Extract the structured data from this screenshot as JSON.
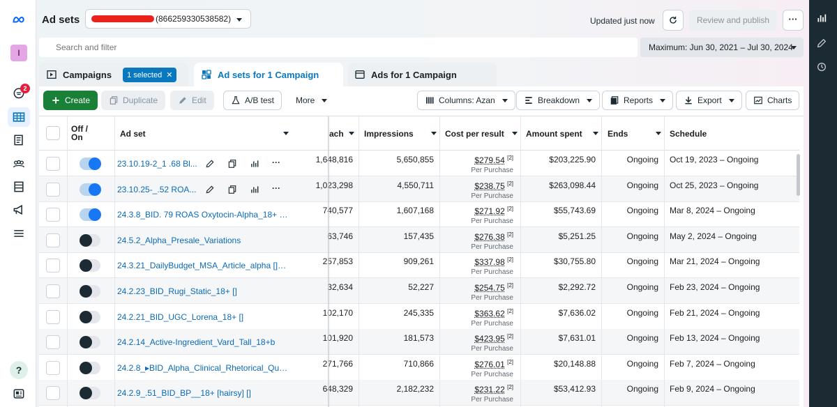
{
  "leftnav": {
    "logo": "meta-logo-icon",
    "avatar_letter": "I",
    "notification_count": "2",
    "items": [
      "account-overview-icon",
      "ads-manager-table-icon",
      "campaigns-icon",
      "audiences-icon",
      "billing-icon",
      "advertise-icon",
      "menu-icon"
    ],
    "bottom": [
      "help-icon",
      "news-icon"
    ]
  },
  "header": {
    "title": "Ad sets",
    "account_id": "(866259330538582)",
    "updated": "Updated just now",
    "review_label": "Review and publish",
    "more_label": "···"
  },
  "search": {
    "placeholder": "Search and filter",
    "date_range": "Maximum: Jun 30, 2021 – Jul 30, 2024"
  },
  "tabs": [
    {
      "label": "Campaigns",
      "chip": "1 selected"
    },
    {
      "label": "Ad sets for 1 Campaign"
    },
    {
      "label": "Ads for 1 Campaign"
    }
  ],
  "toolbar": {
    "create": "Create",
    "duplicate": "Duplicate",
    "edit": "Edit",
    "ab_test": "A/B test",
    "more": "More",
    "columns": "Columns: Azan",
    "breakdown": "Breakdown",
    "reports": "Reports",
    "export": "Export",
    "charts": "Charts"
  },
  "table": {
    "headers": {
      "toggle": "Off / On",
      "adset": "Ad set",
      "reach": "ach",
      "impressions": "Impressions",
      "cpr": "Cost per result",
      "spent": "Amount spent",
      "ends": "Ends",
      "schedule": "Schedule"
    },
    "cpr_sub": "Per Purchase",
    "cpr_sup": "[2]",
    "rows": [
      {
        "on": true,
        "name": "23.10.19-2_1 .68 Bl...",
        "reach": "1,648,816",
        "impressions": "5,650,855",
        "cpr": "$279.54",
        "spent": "$203,225.90",
        "ends": "Ongoing",
        "schedule": "Oct 19, 2023 – Ongoing"
      },
      {
        "on": true,
        "name": "23.10.25-_.52 ROA...",
        "reach": "1,023,298",
        "impressions": "4,550,711",
        "cpr": "$238.75",
        "spent": "$263,098.44",
        "ends": "Ongoing",
        "schedule": "Oct 25, 2023 – Ongoing"
      },
      {
        "on": true,
        "name": "24.3.8_BID. 79 ROAS Oxytocin-Alpha_18+ [res...",
        "reach": "740,577",
        "impressions": "1,607,168",
        "cpr": "$271.92",
        "spent": "$55,743.69",
        "ends": "Ongoing",
        "schedule": "Mar 8, 2024 – Ongoing"
      },
      {
        "on": false,
        "name": "24.5.2_Alpha_Presale_Variations",
        "reach": "63,746",
        "impressions": "157,435",
        "cpr": "$276.38",
        "spent": "$5,251.25",
        "ends": "Ongoing",
        "schedule": "May 2, 2024 – Ongoing"
      },
      {
        "on": false,
        "name": "24.3.21_DailyBudget_MSA_Article_alpha []18+",
        "reach": "257,853",
        "impressions": "909,261",
        "cpr": "$337.98",
        "spent": "$30,755.80",
        "ends": "Ongoing",
        "schedule": "Mar 21, 2024 – Ongoing"
      },
      {
        "on": false,
        "name": "24.2.23_BID_Rugi_Static_18+ []",
        "reach": "32,634",
        "impressions": "52,227",
        "cpr": "$254.75",
        "spent": "$2,292.72",
        "ends": "Ongoing",
        "schedule": "Feb 23, 2024 – Ongoing"
      },
      {
        "on": false,
        "name": "24.2.21_BID_UGC_Lorena_18+ []",
        "reach": "102,170",
        "impressions": "245,335",
        "cpr": "$363.62",
        "spent": "$7,636.02",
        "ends": "Ongoing",
        "schedule": "Feb 21, 2024 – Ongoing"
      },
      {
        "on": false,
        "name": "24.2.14_Active-Ingredient_Vard_Tall_18+b",
        "reach": "101,920",
        "impressions": "181,573",
        "cpr": "$423.95",
        "spent": "$7,631.01",
        "ends": "Ongoing",
        "schedule": "Feb 13, 2024 – Ongoing"
      },
      {
        "on": false,
        "name": "24.2.8_▸BID_Alpha_Clinical_Rhetorical_Quad...",
        "reach": "271,766",
        "impressions": "710,866",
        "cpr": "$276.01",
        "spent": "$20,148.88",
        "ends": "Ongoing",
        "schedule": "Feb 7, 2024 – Ongoing"
      },
      {
        "on": false,
        "name": "24.2.9_.51_BID_BP__18+ [hairsy] []",
        "reach": "648,329",
        "impressions": "2,182,232",
        "cpr": "$231.22",
        "spent": "$53,412.93",
        "ends": "Ongoing",
        "schedule": "Feb 9, 2024 – Ongoing"
      }
    ]
  },
  "rightstrip": [
    "chart-icon",
    "pencil-icon",
    "history-icon"
  ],
  "colors": {
    "accent": "#0a78be",
    "create": "#1a7f37",
    "toggle_on": "#1877f2",
    "redaction": "#e8231c"
  }
}
